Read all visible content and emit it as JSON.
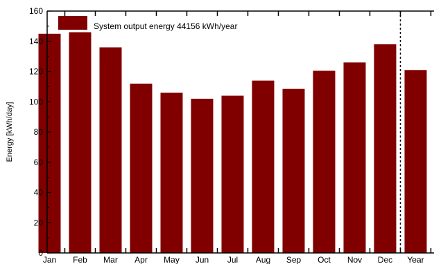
{
  "chart_data": {
    "type": "bar",
    "categories": [
      "Jan",
      "Feb",
      "Mar",
      "Apr",
      "May",
      "Jun",
      "Jul",
      "Aug",
      "Sep",
      "Oct",
      "Nov",
      "Dec",
      "Year"
    ],
    "values": [
      145,
      146,
      136,
      112,
      106,
      102,
      104,
      114,
      108.5,
      120.5,
      126,
      138,
      121
    ],
    "ylabel": "Energy    [kWh/day]",
    "ylim": [
      0,
      160
    ],
    "yticks": [
      0,
      20,
      40,
      60,
      80,
      100,
      120,
      140,
      160
    ],
    "grid": false,
    "legend": {
      "position": "top-left",
      "label": "System output energy   44156 kWh/year"
    },
    "bar_color": "#800000",
    "separator": "dashed vertical line between Dec and Year"
  }
}
